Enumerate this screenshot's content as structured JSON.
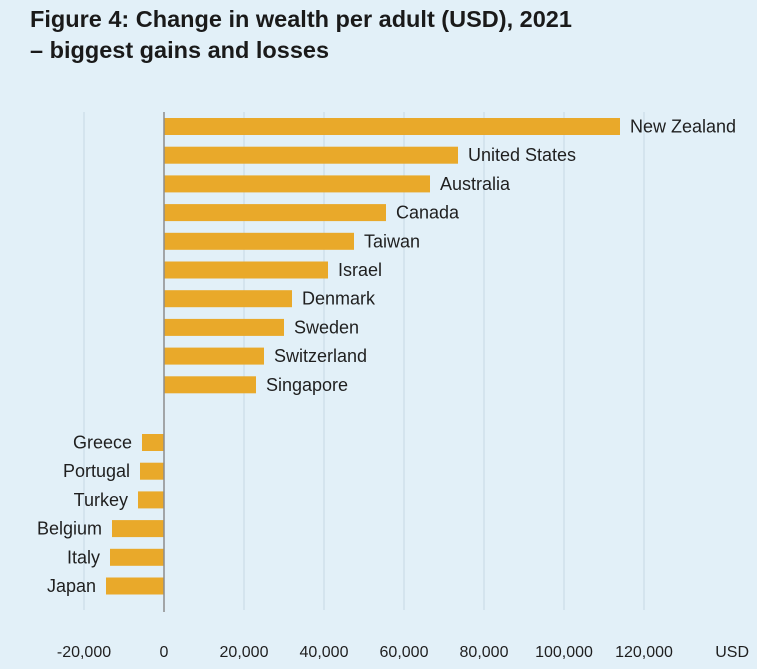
{
  "title_lines": [
    "Figure 4: Change in wealth per adult (USD), 2021",
    "– biggest gains and losses"
  ],
  "chart_data": {
    "type": "bar",
    "orientation": "horizontal",
    "title": "Figure 4: Change in wealth per adult (USD), 2021 – biggest gains and losses",
    "xlabel": "USD",
    "ylabel": "",
    "xlim": [
      -20000,
      120000
    ],
    "x_ticks": [
      -20000,
      0,
      20000,
      40000,
      60000,
      80000,
      100000,
      120000
    ],
    "x_tick_labels": [
      "-20,000",
      "0",
      "20,000",
      "40,000",
      "60,000",
      "80,000",
      "100,000",
      "120,000"
    ],
    "grid": "vertical",
    "bar_color": "#e9a92a",
    "gridline_color": "#c5d9e3",
    "zero_line_color": "#8c8c8c",
    "gains": {
      "categories": [
        "New Zealand",
        "United States",
        "Australia",
        "Canada",
        "Taiwan",
        "Israel",
        "Denmark",
        "Sweden",
        "Switzerland",
        "Singapore"
      ],
      "values": [
        114000,
        73500,
        66500,
        55500,
        47500,
        41000,
        32000,
        30000,
        25000,
        23000
      ]
    },
    "losses": {
      "categories": [
        "Greece",
        "Portugal",
        "Turkey",
        "Belgium",
        "Italy",
        "Japan"
      ],
      "values": [
        -5500,
        -6000,
        -6500,
        -13000,
        -13500,
        -14500
      ]
    }
  }
}
